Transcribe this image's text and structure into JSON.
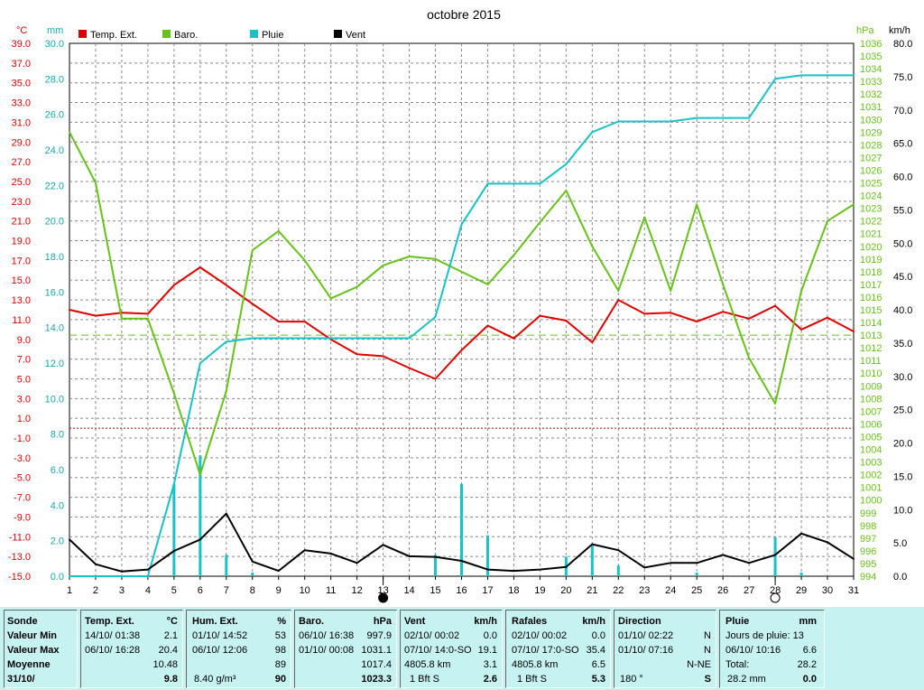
{
  "chart_data": {
    "type": "line",
    "title": "octobre 2015",
    "x": [
      1,
      2,
      3,
      4,
      5,
      6,
      7,
      8,
      9,
      10,
      11,
      12,
      13,
      14,
      15,
      16,
      17,
      18,
      19,
      20,
      21,
      22,
      23,
      24,
      25,
      26,
      27,
      28,
      29,
      30,
      31
    ],
    "axes": {
      "temp": {
        "unit": "°C",
        "min": -15,
        "max": 39,
        "ticks": [
          "39.0",
          "37.0",
          "35.0",
          "33.0",
          "31.0",
          "29.0",
          "27.0",
          "25.0",
          "23.0",
          "21.0",
          "19.0",
          "17.0",
          "15.0",
          "13.0",
          "11.0",
          "9.0",
          "7.0",
          "5.0",
          "3.0",
          "1.0",
          "-1.0",
          "-3.0",
          "-5.0",
          "-7.0",
          "-9.0",
          "-11.0",
          "-13.0",
          "-15.0"
        ]
      },
      "rain": {
        "unit": "mm",
        "min": 0,
        "max": 30,
        "ticks": [
          "30.0",
          "28.0",
          "26.0",
          "24.0",
          "22.0",
          "20.0",
          "18.0",
          "16.0",
          "14.0",
          "12.0",
          "10.0",
          "8.0",
          "6.0",
          "4.0",
          "2.0",
          "0.0"
        ]
      },
      "baro": {
        "unit": "hPa",
        "min": 994,
        "max": 1036,
        "ticks": [
          "1036",
          "1035",
          "1034",
          "1033",
          "1032",
          "1031",
          "1030",
          "1029",
          "1028",
          "1027",
          "1026",
          "1025",
          "1024",
          "1023",
          "1022",
          "1021",
          "1020",
          "1019",
          "1018",
          "1017",
          "1016",
          "1015",
          "1014",
          "1013",
          "1012",
          "1011",
          "1010",
          "1009",
          "1008",
          "1007",
          "1006",
          "1005",
          "1004",
          "1003",
          "1002",
          "1001",
          "1000",
          "999",
          "998",
          "997",
          "996",
          "995",
          "994"
        ]
      },
      "wind": {
        "unit": "km/h",
        "min": 0,
        "max": 80,
        "ticks": [
          "80.0",
          "75.0",
          "70.0",
          "65.0",
          "60.0",
          "55.0",
          "50.0",
          "45.0",
          "40.0",
          "35.0",
          "30.0",
          "25.0",
          "20.0",
          "15.0",
          "10.0",
          "5.0",
          "0.0"
        ]
      }
    },
    "grid": true,
    "legend_position": "top-left",
    "series": [
      {
        "name": "Temp. Ext.",
        "color": "#e00000",
        "axis": "temp",
        "values": [
          12.0,
          11.4,
          11.7,
          11.6,
          14.5,
          16.3,
          14.5,
          12.6,
          10.8,
          10.8,
          9.0,
          7.5,
          7.3,
          6.1,
          5.0,
          7.9,
          10.4,
          9.1,
          11.4,
          10.9,
          8.7,
          13.0,
          11.6,
          11.7,
          10.8,
          11.8,
          11.1,
          12.4,
          10.0,
          11.2,
          9.8
        ]
      },
      {
        "name": "Baro.",
        "color": "#66c218",
        "axis": "baro",
        "values": [
          1029.0,
          1025.0,
          1014.3,
          1014.3,
          1008.4,
          1002.0,
          1008.6,
          1019.7,
          1021.2,
          1018.9,
          1015.9,
          1016.8,
          1018.5,
          1019.2,
          1019.0,
          1018.0,
          1017.0,
          1019.3,
          1021.9,
          1024.4,
          1020.0,
          1016.5,
          1022.3,
          1016.5,
          1023.3,
          1017.0,
          1011.2,
          1007.6,
          1016.5,
          1022.0,
          1023.3
        ]
      },
      {
        "name": "Pluie",
        "color": "#18c2c6",
        "axis": "rain",
        "values": [
          0,
          0,
          0,
          0,
          5.2,
          12.0,
          13.2,
          13.4,
          13.4,
          13.4,
          13.4,
          13.4,
          13.4,
          13.4,
          14.6,
          19.8,
          22.1,
          22.1,
          22.1,
          23.2,
          25.0,
          25.6,
          25.6,
          25.6,
          25.8,
          25.8,
          25.8,
          28.0,
          28.2,
          28.2,
          28.2
        ],
        "daily": [
          0,
          0,
          0,
          0,
          5.2,
          6.8,
          1.2,
          0.2,
          0,
          0,
          0,
          0,
          0,
          0,
          1.2,
          5.2,
          2.3,
          0,
          0,
          1.1,
          1.8,
          0.6,
          0,
          0,
          0.2,
          0,
          0,
          2.2,
          0.2,
          0,
          0
        ]
      },
      {
        "name": "Vent",
        "color": "#000000",
        "axis": "wind",
        "values": [
          5.5,
          1.8,
          0.7,
          1.0,
          3.8,
          5.5,
          9.4,
          2.2,
          0.8,
          3.9,
          3.4,
          2.0,
          4.7,
          3.0,
          2.9,
          2.3,
          1.0,
          0.8,
          1.0,
          1.4,
          4.8,
          3.9,
          1.3,
          2.0,
          2.0,
          3.2,
          2.0,
          3.2,
          6.4,
          5.1,
          2.6
        ]
      }
    ],
    "reference_lines": [
      {
        "axis": "baro",
        "value": 1013,
        "color": "#66c218",
        "style": "dashed"
      },
      {
        "axis": "temp",
        "value": 0,
        "color": "#cc0000",
        "style": "dotted"
      }
    ],
    "markers": [
      {
        "day": 13,
        "symbol": "new-moon"
      },
      {
        "day": 28,
        "symbol": "full-moon"
      }
    ]
  },
  "summary": {
    "sonde": {
      "h": "Sonde",
      "min": "Valeur Min",
      "max": "Valeur Max",
      "moy": "Moyenne",
      "date": "31/10/"
    },
    "temp": {
      "h": "Temp. Ext.",
      "unit": "°C",
      "min_t": "14/10/  01:38",
      "min_v": "2.1",
      "max_t": "06/10/  16:28",
      "max_v": "20.4",
      "moy": "10.48",
      "cur": "9.8"
    },
    "hum": {
      "h": "Hum. Ext.",
      "unit": "%",
      "min_t": "01/10/  14:52",
      "min_v": "53",
      "max_t": "06/10/  12:06",
      "max_v": "98",
      "moy": "89",
      "cur_l": "8.40 g/m³",
      "cur": "90"
    },
    "baro": {
      "h": "Baro.",
      "unit": "hPa",
      "min_t": "06/10/  16:38",
      "min_v": "997.9",
      "max_t": "01/10/  00:08",
      "max_v": "1031.1",
      "moy": "1017.4",
      "cur": "1023.3"
    },
    "vent": {
      "h": "Vent",
      "unit": "km/h",
      "min_t": "02/10/  00:02",
      "min_v": "0.0",
      "max_t": "07/10/  14:0-SO",
      "max_v": "19.1",
      "moy_l": "4805.8 km",
      "moy": "3.1",
      "cur_l": "1 Bft S",
      "cur": "2.6"
    },
    "raf": {
      "h": "Rafales",
      "unit": "km/h",
      "min_t": "02/10/  00:02",
      "min_v": "0.0",
      "max_t": "07/10/  17:0-SO",
      "max_v": "35.4",
      "moy_l": "4805.8 km",
      "moy": "6.5",
      "cur_l": "1 Bft S",
      "cur": "5.3"
    },
    "dir": {
      "h": "Direction",
      "min_t": "01/10/  02:22",
      "min_v": "N",
      "max_t": "01/10/  07:16",
      "max_v": "N",
      "moy": "N-NE",
      "cur_l": "180 °",
      "cur": "S"
    },
    "pluie": {
      "h": "Pluie",
      "unit": "mm",
      "jours": "Jours de pluie: 13",
      "max_t": "06/10/  10:16",
      "max_v": "6.6",
      "tot_l": "Total:",
      "tot": "28.2",
      "cur_l": "28.2 mm",
      "cur": "0.0"
    }
  }
}
